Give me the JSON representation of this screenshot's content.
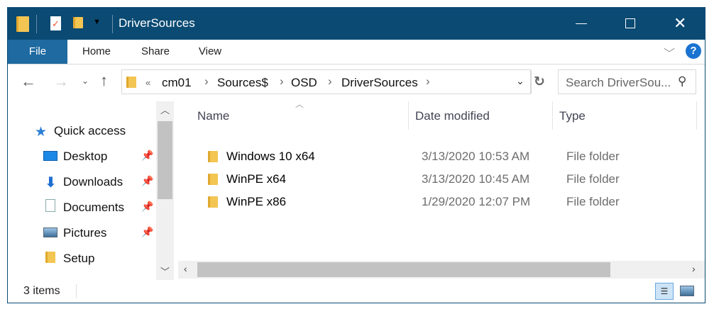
{
  "window": {
    "title": "DriverSources",
    "accent": "#0a4a73"
  },
  "ribbon": {
    "tabs": [
      "File",
      "Home",
      "Share",
      "View"
    ],
    "help": "?"
  },
  "address": {
    "prefix": "«",
    "crumbs": [
      "cm01",
      "Sources$",
      "OSD",
      "DriverSources"
    ]
  },
  "search": {
    "placeholder": "Search DriverSou..."
  },
  "nav": {
    "items": [
      {
        "label": "Quick access",
        "icon": "star-icon"
      },
      {
        "label": "Desktop",
        "icon": "desktop-icon",
        "pinned": true
      },
      {
        "label": "Downloads",
        "icon": "download-icon",
        "pinned": true
      },
      {
        "label": "Documents",
        "icon": "document-icon",
        "pinned": true
      },
      {
        "label": "Pictures",
        "icon": "pictures-icon",
        "pinned": true
      },
      {
        "label": "Setup",
        "icon": "folder-icon",
        "pinned": false
      }
    ]
  },
  "columns": [
    "Name",
    "Date modified",
    "Type"
  ],
  "files": [
    {
      "name": "Windows 10 x64",
      "date": "3/13/2020 10:53 AM",
      "type": "File folder"
    },
    {
      "name": "WinPE x64",
      "date": "3/13/2020 10:45 AM",
      "type": "File folder"
    },
    {
      "name": "WinPE x86",
      "date": "1/29/2020 12:07 PM",
      "type": "File folder"
    }
  ],
  "status": {
    "count": "3 items"
  }
}
